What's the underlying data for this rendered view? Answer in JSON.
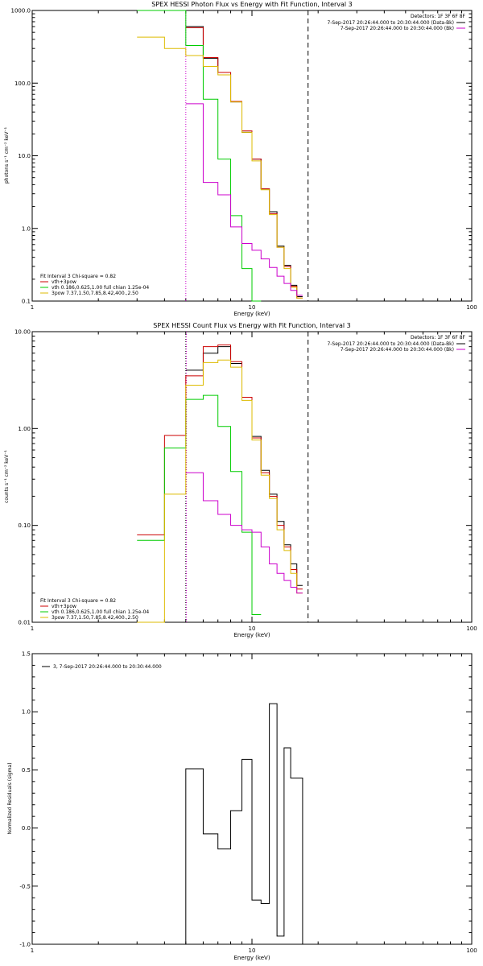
{
  "chart_data": [
    {
      "type": "line",
      "title": "SPEX HESSI Photon Flux vs Energy with Fit Function, Interval 3",
      "xlabel": "Energy (keV)",
      "ylabel": "photons s⁻¹ cm⁻² keV⁻¹",
      "xscale": "log",
      "yscale": "log",
      "xlim": [
        1,
        100
      ],
      "ylim": [
        0.1,
        1000
      ],
      "xticks": [
        {
          "v": 1,
          "label": "1"
        },
        {
          "v": 10,
          "label": "10"
        },
        {
          "v": 100,
          "label": "100"
        }
      ],
      "yticks": [
        {
          "v": 0.1,
          "label": "0.1"
        },
        {
          "v": 1,
          "label": "1.0"
        },
        {
          "v": 10,
          "label": "10.0"
        },
        {
          "v": 100,
          "label": "100.0"
        },
        {
          "v": 1000,
          "label": "1000.0"
        }
      ],
      "edges": [
        3,
        4,
        5,
        6,
        7,
        8,
        9,
        10,
        11,
        12,
        13,
        14,
        15,
        16,
        17,
        18
      ],
      "vlines": [
        {
          "x": 5,
          "color": "#cc00cc",
          "style": "dotted"
        },
        {
          "x": 18,
          "color": "#000000",
          "style": "dashed"
        }
      ],
      "legend_top": {
        "title": "Detectors: 1F 3F 6F 8F",
        "entries": [
          {
            "label": "7-Sep-2017 20:26:44.000 to 20:30:44.000 (Data-Bk)",
            "color": "#000000"
          },
          {
            "label": "7-Sep-2017 20:26:44.000 to 20:30:44.000 (Bk)",
            "color": "#cc00cc"
          }
        ]
      },
      "legend_bottom": {
        "title": "Fit Interval 3   Chi-square = 0.82",
        "entries": [
          {
            "label": "vth+3pow",
            "color": "#cc0000"
          },
          {
            "label": "vth 0.186,0.625,1.00  full chian 1.25e-04",
            "color": "#00cc00"
          },
          {
            "label": "3pow 7.37,1.50,7.85,8.42,400.,2.50",
            "color": "#ddbb00"
          }
        ]
      },
      "series": [
        {
          "color": "#000000",
          "values": [
            null,
            null,
            600,
            220,
            140,
            55,
            21,
            9,
            3.5,
            1.7,
            0.57,
            0.31,
            0.165,
            0.115,
            null
          ]
        },
        {
          "color": "#cc0000",
          "values": [
            null,
            null,
            580,
            225,
            140,
            56,
            22,
            9,
            3.5,
            1.6,
            0.55,
            0.3,
            0.16,
            0.11,
            null
          ]
        },
        {
          "color": "#00cc00",
          "values": [
            1000,
            1000,
            330,
            60,
            9,
            1.5,
            0.28,
            0.1,
            null,
            null,
            null,
            null,
            null,
            null,
            null
          ]
        },
        {
          "color": "#ddbb00",
          "values": [
            430,
            300,
            240,
            170,
            130,
            55,
            21,
            8.5,
            3.4,
            1.55,
            0.55,
            0.28,
            0.155,
            0.11,
            null
          ]
        },
        {
          "color": "#cc00cc",
          "values": [
            null,
            null,
            52,
            4.3,
            2.9,
            1.05,
            0.62,
            0.5,
            0.38,
            0.29,
            0.22,
            0.175,
            0.14,
            0.12,
            null
          ]
        }
      ]
    },
    {
      "type": "line",
      "title": "SPEX HESSI Count Flux vs Energy with Fit Function, Interval 3",
      "xlabel": "Energy (keV)",
      "ylabel": "counts s⁻¹ cm⁻² keV⁻¹",
      "xscale": "log",
      "yscale": "log",
      "xlim": [
        1,
        100
      ],
      "ylim": [
        0.01,
        10
      ],
      "xticks": [
        {
          "v": 1,
          "label": "1"
        },
        {
          "v": 10,
          "label": "10"
        },
        {
          "v": 100,
          "label": "100"
        }
      ],
      "yticks": [
        {
          "v": 0.01,
          "label": "0.01"
        },
        {
          "v": 0.1,
          "label": "0.10"
        },
        {
          "v": 1,
          "label": "1.00"
        },
        {
          "v": 10,
          "label": "10.00"
        }
      ],
      "edges": [
        3,
        4,
        5,
        6,
        7,
        8,
        9,
        10,
        11,
        12,
        13,
        14,
        15,
        16,
        17,
        18
      ],
      "vlines": [
        {
          "x": 5,
          "color": "#000000",
          "style": "dotted"
        },
        {
          "x": 5,
          "color": "#cc00cc",
          "style": "dotted"
        },
        {
          "x": 18,
          "color": "#000000",
          "style": "dashed"
        }
      ],
      "legend_top": {
        "title": "Detectors: 1F 3F 6F 8F",
        "entries": [
          {
            "label": "7-Sep-2017 20:26:44.000 to 20:30:44.000 (Data-Bk)",
            "color": "#000000"
          },
          {
            "label": "7-Sep-2017 20:26:44.000 to 20:30:44.000 (Bk)",
            "color": "#cc00cc"
          }
        ]
      },
      "legend_bottom": {
        "title": "Fit Interval 3   Chi-square = 0.82",
        "entries": [
          {
            "label": "vth+3pow",
            "color": "#cc0000"
          },
          {
            "label": "vth 0.186,0.625,1.00  full chian 1.25e-04",
            "color": "#00cc00"
          },
          {
            "label": "3pow 7.37,1.50,7.85,8.42,400.,2.50",
            "color": "#ddbb00"
          }
        ]
      },
      "series": [
        {
          "color": "#000000",
          "values": [
            null,
            null,
            4.0,
            6.0,
            7.0,
            4.7,
            2.1,
            0.83,
            0.37,
            0.21,
            0.11,
            0.063,
            0.04,
            0.024,
            null
          ]
        },
        {
          "color": "#cc0000",
          "values": [
            0.08,
            0.85,
            3.5,
            7.0,
            7.3,
            4.9,
            2.1,
            0.8,
            0.35,
            0.2,
            0.1,
            0.06,
            0.035,
            0.022,
            null
          ]
        },
        {
          "color": "#00cc00",
          "values": [
            0.07,
            0.63,
            2.0,
            2.2,
            1.05,
            0.36,
            0.085,
            0.012,
            null,
            null,
            null,
            null,
            null,
            null,
            null
          ]
        },
        {
          "color": "#ddbb00",
          "values": [
            0.01,
            0.21,
            2.8,
            4.8,
            5.1,
            4.3,
            1.95,
            0.76,
            0.33,
            0.19,
            0.09,
            0.055,
            0.032,
            0.02,
            null
          ]
        },
        {
          "color": "#cc00cc",
          "values": [
            null,
            null,
            0.35,
            0.18,
            0.13,
            0.1,
            0.09,
            0.085,
            0.06,
            0.04,
            0.032,
            0.027,
            0.023,
            0.02,
            null
          ]
        }
      ]
    },
    {
      "type": "line",
      "title": "",
      "xlabel": "Energy (keV)",
      "ylabel": "Normalized Residuals (sigma)",
      "xscale": "log",
      "yscale": "linear",
      "xlim": [
        1,
        100
      ],
      "ylim": [
        -1,
        1.5
      ],
      "xticks": [
        {
          "v": 1,
          "label": "1"
        },
        {
          "v": 10,
          "label": "10"
        },
        {
          "v": 100,
          "label": "100"
        }
      ],
      "yticks": [
        {
          "v": -1,
          "label": "-1.0"
        },
        {
          "v": -0.5,
          "label": "-0.5"
        },
        {
          "v": 0,
          "label": "0.0"
        },
        {
          "v": 0.5,
          "label": "0.5"
        },
        {
          "v": 1,
          "label": "1.0"
        },
        {
          "v": 1.5,
          "label": "1.5"
        }
      ],
      "edges": [
        5,
        6,
        7,
        8,
        9,
        10,
        11,
        12,
        13,
        14,
        15,
        16,
        17
      ],
      "vlines": [],
      "baseline": -1,
      "legend_top_left": {
        "label": "3,  7-Sep-2017 20:26:44.000 to 20:30:44.000",
        "color": "#000000"
      },
      "series": [
        {
          "color": "#000000",
          "values": [
            0.51,
            -0.05,
            -0.18,
            0.15,
            0.59,
            -0.62,
            -0.65,
            1.07,
            -0.93,
            0.69,
            0.43,
            0.43
          ]
        }
      ]
    }
  ]
}
